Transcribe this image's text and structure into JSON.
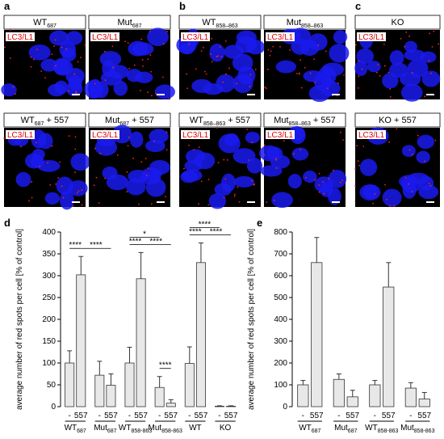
{
  "panels": [
    {
      "letter": "a",
      "tiles": [
        {
          "title": {
            "text": "WT",
            "sub": "687"
          },
          "marker": "LC3/L1"
        },
        {
          "title": {
            "text": "Mut",
            "sub": "687"
          },
          "marker": "LC3/L1"
        },
        {
          "title": {
            "text": "WT",
            "sub": "687",
            "suffix": " + 557"
          },
          "marker": "LC3/L1"
        },
        {
          "title": {
            "text": "Mut",
            "sub": "687",
            "suffix": " + 557"
          },
          "marker": "LC3/L1"
        }
      ]
    },
    {
      "letter": "b",
      "tiles": [
        {
          "title": {
            "text": "WT",
            "sub": "858–863"
          },
          "marker": "LC3/L1"
        },
        {
          "title": {
            "text": "Mut",
            "sub": "858–863"
          },
          "marker": "LC3/L1"
        },
        {
          "title": {
            "text": "WT",
            "sub": "858–863",
            "suffix": " + 557"
          },
          "marker": "LC3/L1"
        },
        {
          "title": {
            "text": "Mut",
            "sub": "858–863",
            "suffix": " + 557"
          },
          "marker": "LC3/L1"
        }
      ]
    },
    {
      "letter": "c",
      "tiles": [
        {
          "title": {
            "text": "KO"
          },
          "marker": "LC3/L1"
        },
        {
          "title": {
            "text": "KO + 557"
          },
          "marker": "LC3/L1"
        }
      ]
    }
  ],
  "chart_data": [
    {
      "type": "bar",
      "letter": "d",
      "ylabel": "average number of red spots per cell  [% of control]",
      "categories": [
        "-",
        "557",
        "-",
        "557",
        "-",
        "557",
        "-",
        "557",
        "-",
        "557",
        "-",
        "557"
      ],
      "groups": [
        {
          "text": "WT",
          "sub": "687"
        },
        {
          "text": "Mut",
          "sub": "687"
        },
        {
          "text": "WT",
          "sub": "858-863"
        },
        {
          "text": "Mut",
          "sub": "858-863"
        },
        {
          "text": "WT"
        },
        {
          "text": "KO"
        }
      ],
      "values": [
        100,
        302,
        72,
        49,
        100,
        293,
        44,
        8,
        99,
        330,
        1,
        1
      ],
      "errors": [
        28,
        42,
        32,
        26,
        36,
        60,
        25,
        8,
        38,
        45,
        1,
        1
      ],
      "ylim": [
        0,
        400
      ],
      "yticks": [
        0,
        50,
        100,
        150,
        200,
        250,
        300,
        350,
        400
      ],
      "color": "#e8e8e8",
      "significance": [
        {
          "label": "****",
          "bars": [
            0,
            1
          ]
        },
        {
          "label": "****",
          "bars": [
            1,
            3
          ]
        },
        {
          "label": "****",
          "bars": [
            4,
            5
          ]
        },
        {
          "label": "*",
          "bars": [
            4,
            6
          ]
        },
        {
          "label": "****",
          "bars": [
            5,
            7
          ]
        },
        {
          "label": "****",
          "bars": [
            6,
            7
          ]
        },
        {
          "label": "****",
          "bars": [
            8,
            9
          ]
        },
        {
          "label": "****",
          "bars": [
            8,
            10
          ]
        },
        {
          "label": "****",
          "bars": [
            9,
            11
          ]
        }
      ]
    },
    {
      "type": "bar",
      "letter": "e",
      "ylabel": "average number of red spots per cell  [% of control]",
      "categories": [
        "-",
        "557",
        "-",
        "557",
        "-",
        "557",
        "-",
        "557"
      ],
      "groups": [
        {
          "text": "WT",
          "sub": "687"
        },
        {
          "text": "Mut",
          "sub": "687"
        },
        {
          "text": "WT",
          "sub": "858-863"
        },
        {
          "text": "Mut",
          "sub": "858-863"
        }
      ],
      "values": [
        100,
        660,
        125,
        45,
        100,
        548,
        85,
        35
      ],
      "errors": [
        20,
        115,
        25,
        30,
        20,
        112,
        25,
        30
      ],
      "ylim": [
        0,
        800
      ],
      "yticks": [
        0,
        100,
        200,
        300,
        400,
        500,
        600,
        700,
        800
      ],
      "color": "#e8e8e8"
    }
  ]
}
